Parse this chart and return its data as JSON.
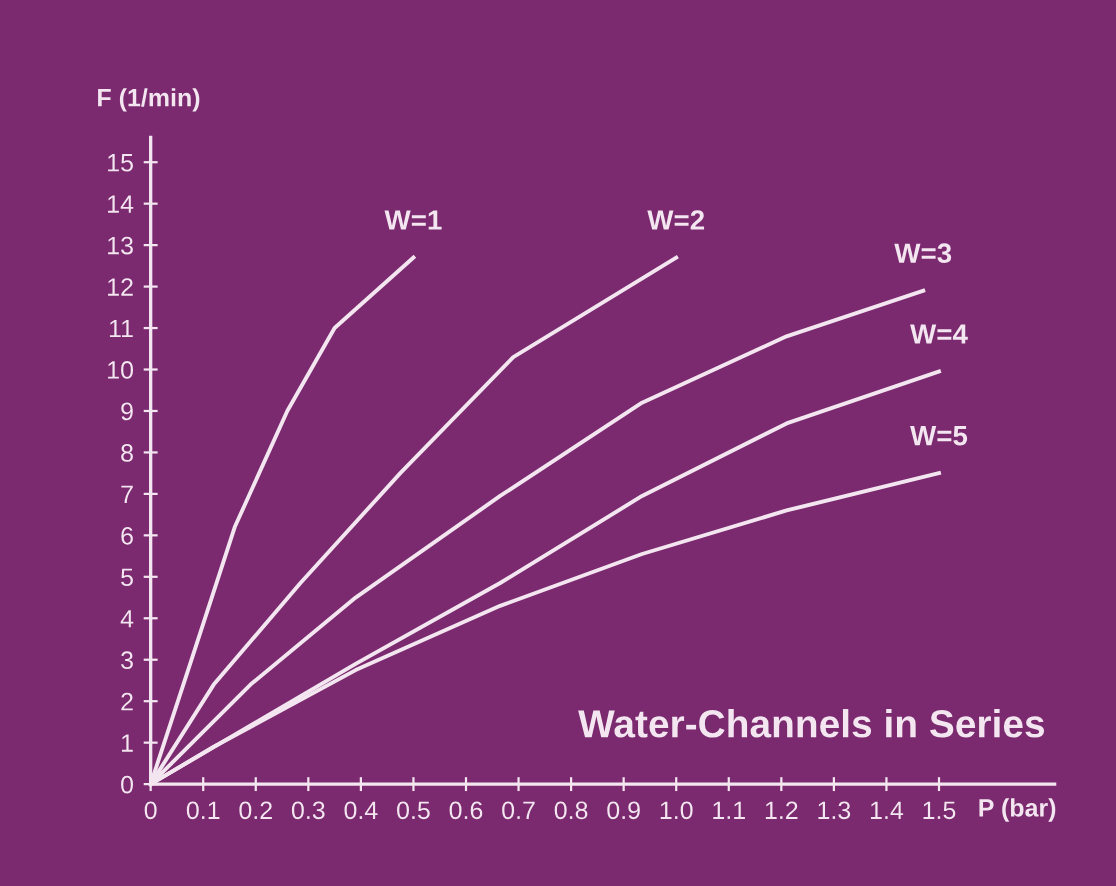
{
  "chart_data": {
    "type": "line",
    "xlabel": "P (bar)",
    "ylabel": "F (1/min)",
    "annotations": [
      "Water-Channels in Series"
    ],
    "xlim": [
      0,
      1.72
    ],
    "ylim": [
      0,
      15.6
    ],
    "xticks": [
      0,
      {
        "value": 0.1,
        "label": "0.1"
      },
      {
        "value": 0.2,
        "label": "0.2"
      },
      {
        "value": 0.3,
        "label": "0.3"
      },
      {
        "value": 0.4,
        "label": "0.4"
      },
      {
        "value": 0.5,
        "label": "0.5"
      },
      {
        "value": 0.6,
        "label": "0.6"
      },
      {
        "value": 0.7,
        "label": "0.7"
      },
      {
        "value": 0.8,
        "label": "0.8"
      },
      {
        "value": 0.9,
        "label": "0.9"
      },
      {
        "value": 1,
        "label": "1.0"
      },
      {
        "value": 1.1,
        "label": "1.1"
      },
      {
        "value": 1.2,
        "label": "1.2"
      },
      {
        "value": 1.3,
        "label": "1.3"
      },
      {
        "value": 1.4,
        "label": "1.4"
      },
      {
        "value": 1.5,
        "label": "1.5"
      }
    ],
    "yticks": [
      0,
      1,
      2,
      3,
      4,
      5,
      6,
      7,
      8,
      9,
      10,
      11,
      12,
      13,
      14,
      15
    ],
    "grid": false,
    "legend": false,
    "marker": "none",
    "line_style": "solid",
    "series": [
      {
        "name": "W=1",
        "color": "#f3e6f0",
        "x": [
          0,
          0.07,
          0.16,
          0.26,
          0.35,
          0.5
        ],
        "values": [
          0,
          2.7,
          6.2,
          9.0,
          11.0,
          12.7
        ]
      },
      {
        "name": "W=2",
        "color": "#f3e6f0",
        "x": [
          0,
          0.12,
          0.285,
          0.475,
          0.69,
          1.0
        ],
        "values": [
          0,
          2.4,
          4.85,
          7.5,
          10.3,
          12.7
        ]
      },
      {
        "name": "W=3",
        "color": "#f3e6f0",
        "x": [
          0,
          0.19,
          0.39,
          0.665,
          0.935,
          1.21,
          1.47
        ],
        "values": [
          0,
          2.4,
          4.5,
          6.95,
          9.2,
          10.8,
          11.9
        ]
      },
      {
        "name": "W=4",
        "color": "#f3e6f0",
        "x": [
          0,
          0.39,
          0.665,
          0.935,
          1.21,
          1.5
        ],
        "values": [
          0,
          2.9,
          4.85,
          6.95,
          8.7,
          9.95
        ]
      },
      {
        "name": "W=5",
        "color": "#f3e6f0",
        "x": [
          0,
          0.12,
          0.39,
          0.665,
          0.935,
          1.21,
          1.5
        ],
        "values": [
          0,
          0.9,
          2.75,
          4.3,
          5.55,
          6.6,
          7.5
        ]
      }
    ]
  }
}
